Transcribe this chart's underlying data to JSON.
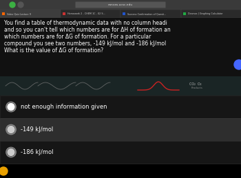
{
  "browser_bar_color": "#3a3a3a",
  "browser_url": "canvas.ucsc.edu",
  "tab_bg_active": "#3d3d3d",
  "tab_bg_inactive": "#2a2a2a",
  "tabs": [
    "Video Quiz Lecture 9",
    "Homework 2 - CHEM 1C - 02 S...",
    "Success Confirmation of Questi...",
    "Desmos | Graphing Calculator"
  ],
  "question_bg": "#111111",
  "question_lines": [
    "You find a table of thermodynamic data with no column headi",
    "and so you can't tell which numbers are for ΔH of formation an",
    "which numbers are for ΔG of formation. For a particular",
    "compound you see two numbers, -149 kJ/mol and -186 kJ/mol",
    "What is the value of ΔG of formation?"
  ],
  "question_text_color": "#ffffff",
  "mid_bg": "#1a2020",
  "answer_rows": [
    {
      "text": "not enough information given",
      "bg": "#161616",
      "circle_fill": "#ffffff",
      "sep_color": "#333333"
    },
    {
      "text": "-149 kJ/mol",
      "bg": "#2e2e2e",
      "circle_fill": "#cccccc",
      "sep_color": "#444444"
    },
    {
      "text": "-186 kJ/mol",
      "bg": "#161616",
      "circle_fill": "#cccccc",
      "sep_color": "#333333"
    }
  ],
  "blue_dot_color": "#4466ff",
  "orange_dot_color": "#e8a000",
  "green_dot_color": "#3cb043",
  "gray_dot_color": "#555555"
}
